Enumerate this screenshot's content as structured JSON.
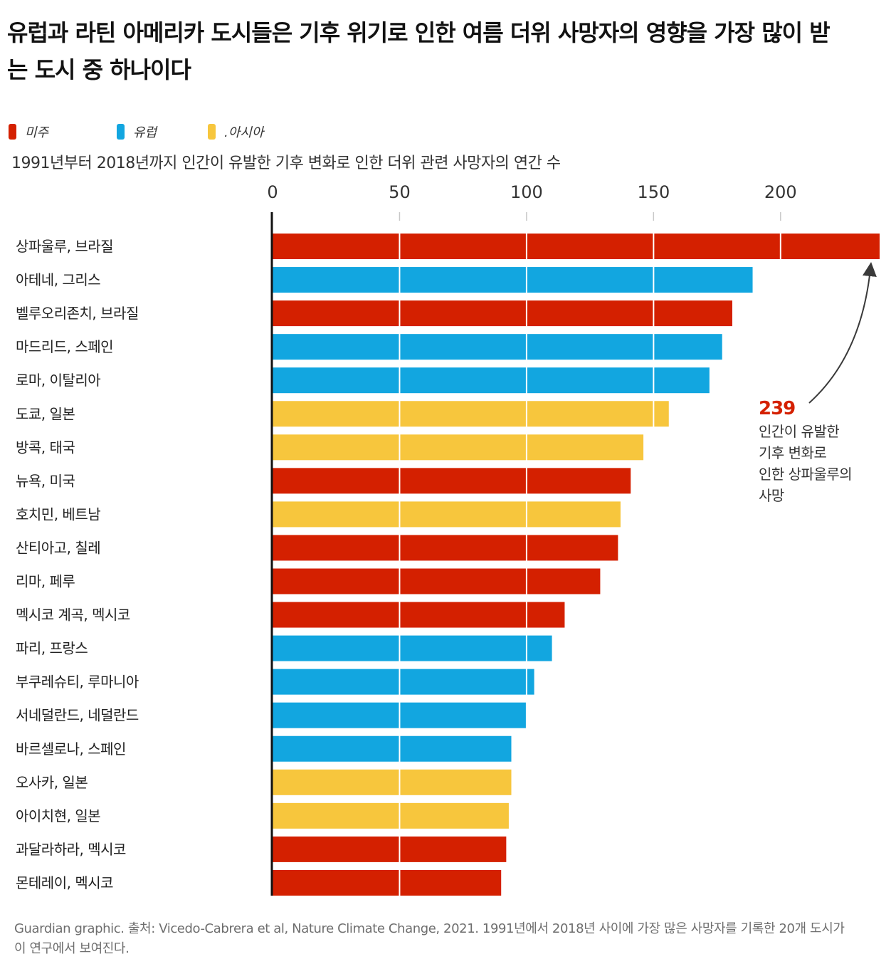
{
  "title": "유럽과 라틴 아메리카 도시들은 기후 위기로 인한 여름 더위 사망자의 영향을 가장 많이 받는 도시 중 하나이다",
  "legend": [
    {
      "label": "미주",
      "color": "#d42000"
    },
    {
      "label": "유럽",
      "color": "#12a6e0"
    },
    {
      "label": ".아시아",
      "color": "#f7c63d"
    }
  ],
  "subtitle": "1991년부터 2018년까지 인간이 유발한 기후 변화로 인한 더위 관련 사망자의 연간 수",
  "chart_data": {
    "type": "bar",
    "orientation": "horizontal",
    "xlim": [
      0,
      239
    ],
    "x_ticks": [
      0,
      50,
      100,
      150,
      200
    ],
    "categories": [
      "상파울루, 브라질",
      "아테네, 그리스",
      "벨루오리존치, 브라질",
      "마드리드, 스페인",
      "로마, 이탈리아",
      "도쿄, 일본",
      "방콕, 태국",
      "뉴욕, 미국",
      "호치민, 베트남",
      "산티아고, 칠레",
      "리마, 페루",
      "멕시코 계곡, 멕시코",
      "파리, 프랑스",
      "부쿠레슈티, 루마니아",
      "서네덜란드, 네덜란드",
      "바르셀로나, 스페인",
      "오사카, 일본",
      "아이치현, 일본",
      "과달라하라, 멕시코",
      "몬테레이, 멕시코"
    ],
    "values": [
      239,
      189,
      181,
      177,
      172,
      156,
      146,
      141,
      137,
      136,
      129,
      115,
      110,
      103,
      100,
      94,
      94,
      93,
      92,
      90
    ],
    "regions": [
      "미주",
      "유럽",
      "미주",
      "유럽",
      "유럽",
      ".아시아",
      ".아시아",
      "미주",
      ".아시아",
      "미주",
      "미주",
      "미주",
      "유럽",
      "유럽",
      "유럽",
      "유럽",
      ".아시아",
      ".아시아",
      "미주",
      "미주"
    ],
    "annotation": {
      "value": "239",
      "lines": [
        "인간이 유발한",
        "기후 변화로",
        "인한 상파울루의",
        "사망"
      ]
    }
  },
  "source": "Guardian graphic. 출처: Vicedo-Cabrera et al, Nature Climate Change, 2021. 1991년에서 2018년 사이에 가장 많은 사망자를 기록한 20개 도시가 이 연구에서 보여진다."
}
